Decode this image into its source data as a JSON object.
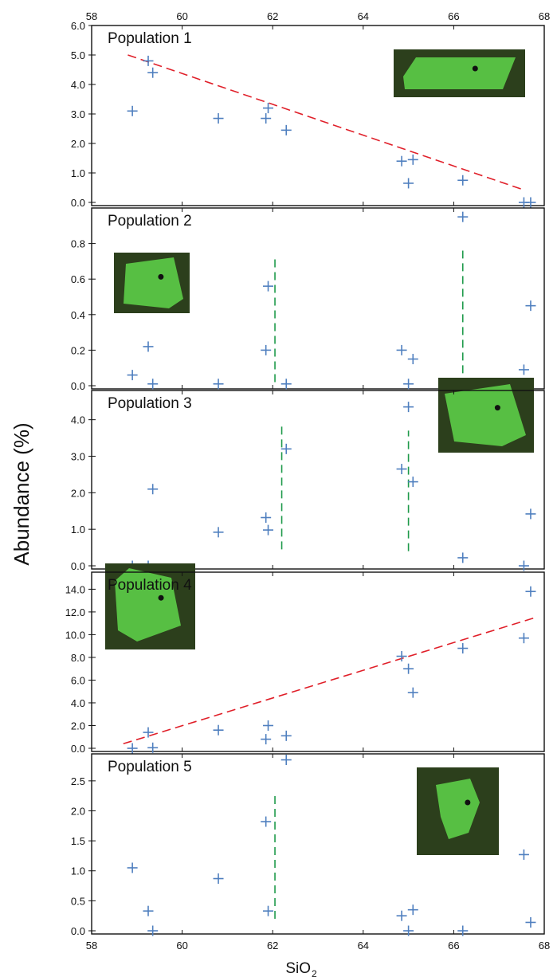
{
  "figure": {
    "xlabel": "SiO",
    "xlabel_subscript": "2",
    "ylabel": "Abundance (%)",
    "colors": {
      "marker": "#4f7fbf",
      "regression": "#e0202a",
      "threshold": "#1e9a4a",
      "axis": "#111111",
      "inset_background": "#2c3f1c",
      "inset_crystal": "#5fd64a"
    }
  },
  "chart_data": [
    {
      "type": "scatter",
      "title": "Population 1",
      "xlim": [
        58,
        68
      ],
      "ylim": [
        0,
        6
      ],
      "yticks": [
        0,
        1,
        2,
        3,
        4,
        5,
        6
      ],
      "ytick_labels": [
        "0.0",
        "1.0",
        "2.0",
        "3.0",
        "4.0",
        "5.0",
        "6.0"
      ],
      "top_xticks": [
        "58",
        "60",
        "62",
        "64",
        "66",
        "68"
      ],
      "bottom_xticks": [],
      "points": [
        {
          "x": 58.9,
          "y": 3.1
        },
        {
          "x": 59.25,
          "y": 4.8
        },
        {
          "x": 59.35,
          "y": 4.4
        },
        {
          "x": 60.8,
          "y": 2.85
        },
        {
          "x": 61.85,
          "y": 2.85
        },
        {
          "x": 61.9,
          "y": 3.2
        },
        {
          "x": 62.3,
          "y": 2.45
        },
        {
          "x": 64.85,
          "y": 1.4
        },
        {
          "x": 65.0,
          "y": 0.65
        },
        {
          "x": 65.1,
          "y": 1.45
        },
        {
          "x": 66.2,
          "y": 0.75
        },
        {
          "x": 67.55,
          "y": 0.0
        },
        {
          "x": 67.7,
          "y": 0.0
        }
      ],
      "trend_lines": [
        {
          "kind": "regression",
          "x": [
            58.8,
            67.5
          ],
          "y": [
            5.0,
            0.45
          ]
        }
      ],
      "inset_photo": "crystal-photo-elongated"
    },
    {
      "type": "scatter",
      "title": "Population 2",
      "xlim": [
        58,
        68
      ],
      "ylim": [
        0,
        1
      ],
      "yticks": [
        0,
        0.2,
        0.4,
        0.6,
        0.8
      ],
      "ytick_labels": [
        "0.0",
        "0.2",
        "0.4",
        "0.6",
        "0.8"
      ],
      "top_xticks": [],
      "bottom_xticks": [],
      "points": [
        {
          "x": 58.9,
          "y": 0.06
        },
        {
          "x": 59.25,
          "y": 0.22
        },
        {
          "x": 59.35,
          "y": 0.01
        },
        {
          "x": 60.8,
          "y": 0.01
        },
        {
          "x": 61.85,
          "y": 0.2
        },
        {
          "x": 61.9,
          "y": 0.56
        },
        {
          "x": 62.3,
          "y": 0.01
        },
        {
          "x": 64.85,
          "y": 0.2
        },
        {
          "x": 65.0,
          "y": 0.01
        },
        {
          "x": 65.1,
          "y": 0.15
        },
        {
          "x": 66.2,
          "y": 0.95
        },
        {
          "x": 67.55,
          "y": 0.09
        },
        {
          "x": 67.7,
          "y": 0.45
        }
      ],
      "trend_lines": [
        {
          "kind": "threshold",
          "x": [
            62.05,
            62.05
          ],
          "y": [
            0.02,
            0.72
          ]
        },
        {
          "kind": "threshold",
          "x": [
            66.2,
            66.2
          ],
          "y": [
            0.07,
            0.76
          ]
        }
      ],
      "inset_photo": "crystal-photo-arrowed"
    },
    {
      "type": "scatter",
      "title": "Population 3",
      "xlim": [
        58,
        68
      ],
      "ylim": [
        0,
        4.8
      ],
      "yticks": [
        0,
        1,
        2,
        3,
        4
      ],
      "ytick_labels": [
        "0.0",
        "1.0",
        "2.0",
        "3.0",
        "4.0"
      ],
      "top_xticks": [],
      "bottom_xticks": [],
      "points": [
        {
          "x": 58.9,
          "y": 0.0
        },
        {
          "x": 59.25,
          "y": 0.0
        },
        {
          "x": 59.35,
          "y": 2.1
        },
        {
          "x": 60.8,
          "y": 0.92
        },
        {
          "x": 61.85,
          "y": 1.32
        },
        {
          "x": 61.9,
          "y": 0.98
        },
        {
          "x": 62.3,
          "y": 3.2
        },
        {
          "x": 64.85,
          "y": 2.65
        },
        {
          "x": 65.0,
          "y": 4.35
        },
        {
          "x": 65.1,
          "y": 2.3
        },
        {
          "x": 66.2,
          "y": 0.22
        },
        {
          "x": 67.55,
          "y": 0.0
        },
        {
          "x": 67.7,
          "y": 1.42
        }
      ],
      "trend_lines": [
        {
          "kind": "threshold",
          "x": [
            62.2,
            62.2
          ],
          "y": [
            0.45,
            3.85
          ]
        },
        {
          "kind": "threshold",
          "x": [
            65.0,
            65.0
          ],
          "y": [
            0.4,
            3.7
          ]
        }
      ],
      "inset_photo": "crystal-photo-fractured"
    },
    {
      "type": "scatter",
      "title": "Population 4",
      "xlim": [
        58,
        68
      ],
      "ylim": [
        0,
        15.5
      ],
      "yticks": [
        0,
        2,
        4,
        6,
        8,
        10,
        12,
        14
      ],
      "ytick_labels": [
        "0.0",
        "2.0",
        "4.0",
        "6.0",
        "8.0",
        "10.0",
        "12.0",
        "14.0"
      ],
      "top_xticks": [],
      "bottom_xticks": [],
      "points": [
        {
          "x": 58.9,
          "y": 0.0
        },
        {
          "x": 59.25,
          "y": 1.4
        },
        {
          "x": 59.35,
          "y": 0.05
        },
        {
          "x": 60.8,
          "y": 1.6
        },
        {
          "x": 61.85,
          "y": 0.8
        },
        {
          "x": 61.9,
          "y": 2.0
        },
        {
          "x": 62.3,
          "y": 1.1
        },
        {
          "x": 64.85,
          "y": 8.1
        },
        {
          "x": 65.0,
          "y": 7.0
        },
        {
          "x": 65.1,
          "y": 4.9
        },
        {
          "x": 66.2,
          "y": 8.8
        },
        {
          "x": 67.55,
          "y": 9.7
        },
        {
          "x": 67.7,
          "y": 13.8
        }
      ],
      "trend_lines": [
        {
          "kind": "regression",
          "x": [
            58.7,
            67.8
          ],
          "y": [
            0.4,
            11.5
          ]
        }
      ],
      "inset_photo": "crystal-photo-rounded"
    },
    {
      "type": "scatter",
      "title": "Population 5",
      "xlim": [
        58,
        68
      ],
      "ylim": [
        0,
        2.95
      ],
      "yticks": [
        0,
        0.5,
        1,
        1.5,
        2,
        2.5
      ],
      "ytick_labels": [
        "0.0",
        "0.5",
        "1.0",
        "1.5",
        "2.0",
        "2.5"
      ],
      "top_xticks": [],
      "bottom_xticks": [
        "58",
        "60",
        "62",
        "64",
        "66",
        "68"
      ],
      "points": [
        {
          "x": 58.9,
          "y": 1.05
        },
        {
          "x": 59.25,
          "y": 0.33
        },
        {
          "x": 59.35,
          "y": 0.0
        },
        {
          "x": 60.8,
          "y": 0.87
        },
        {
          "x": 61.85,
          "y": 1.82
        },
        {
          "x": 61.9,
          "y": 0.33
        },
        {
          "x": 62.3,
          "y": 2.85
        },
        {
          "x": 64.85,
          "y": 0.25
        },
        {
          "x": 65.0,
          "y": 0.0
        },
        {
          "x": 65.1,
          "y": 0.35
        },
        {
          "x": 66.2,
          "y": 0.0
        },
        {
          "x": 67.55,
          "y": 1.27
        },
        {
          "x": 67.7,
          "y": 0.14
        }
      ],
      "trend_lines": [
        {
          "kind": "threshold",
          "x": [
            62.05,
            62.05
          ],
          "y": [
            0.2,
            2.3
          ]
        }
      ],
      "inset_photo": "crystal-photo-blocky"
    }
  ]
}
